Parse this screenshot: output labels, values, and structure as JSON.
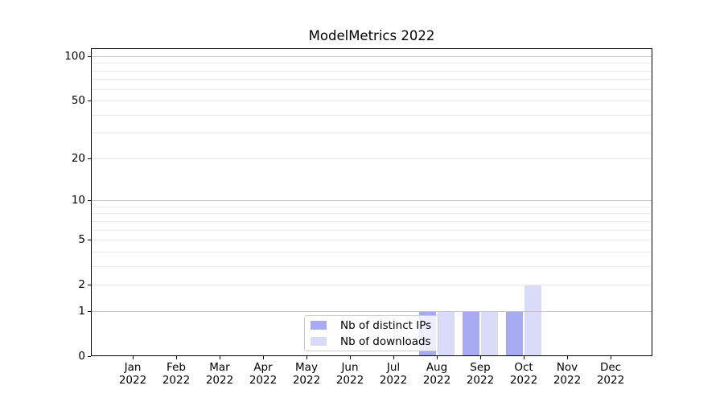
{
  "title": "ModelMetrics 2022",
  "chart_data": {
    "type": "bar",
    "title": "ModelMetrics 2022",
    "categories": [
      "Jan 2022",
      "Feb 2022",
      "Mar 2022",
      "Apr 2022",
      "May 2022",
      "Jun 2022",
      "Jul 2022",
      "Aug 2022",
      "Sep 2022",
      "Oct 2022",
      "Nov 2022",
      "Dec 2022"
    ],
    "series": [
      {
        "name": "Nb of distinct IPs",
        "key": "distinct-ips",
        "color": "#a7a9f1",
        "values": [
          0,
          0,
          0,
          0,
          0,
          0,
          0,
          1,
          1,
          1,
          0,
          0
        ]
      },
      {
        "name": "Nb of downloads",
        "key": "downloads",
        "color": "#d9dbf9",
        "values": [
          0,
          0,
          0,
          0,
          0,
          0,
          0,
          1,
          1,
          2,
          0,
          0
        ]
      }
    ],
    "xlabel": "",
    "ylabel": "",
    "yscale": "log1p",
    "ylim": [
      0,
      110
    ],
    "y_ticks": [
      0,
      1,
      2,
      5,
      10,
      20,
      50,
      100
    ],
    "y_major_gridlines": [
      1,
      10,
      100
    ],
    "y_minor_gridlines": [
      2,
      3,
      4,
      5,
      6,
      7,
      8,
      9,
      20,
      30,
      40,
      50,
      60,
      70,
      80,
      90
    ],
    "grid": true,
    "legend_position": "lower center"
  },
  "colors": {
    "bar_distinct_ips": "#a7a9f1",
    "bar_downloads": "#d9dbf9",
    "grid_major": "#c3c3c3",
    "grid_minor": "#ebebeb",
    "axis": "#000000",
    "legend_border": "#cccccc",
    "background": "#ffffff"
  }
}
